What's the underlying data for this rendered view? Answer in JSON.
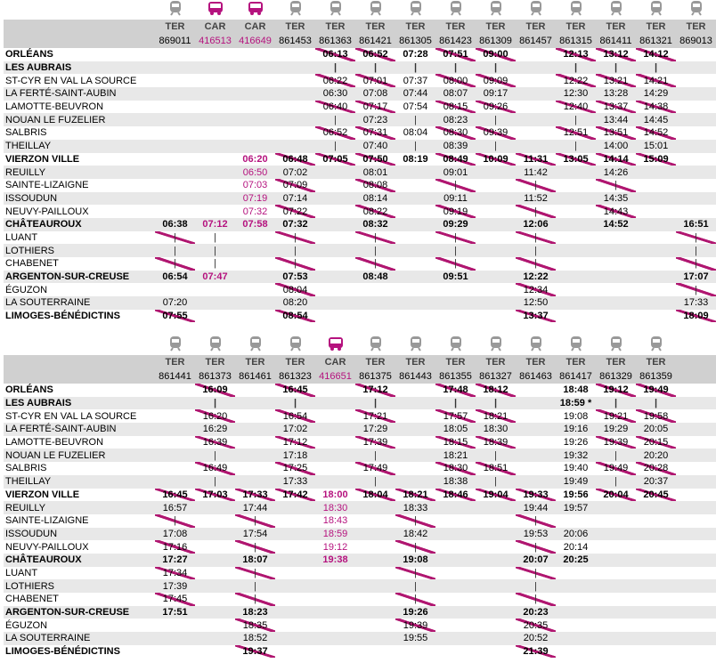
{
  "stations": [
    {
      "name": "ORLÉANS",
      "major": true
    },
    {
      "name": "LES AUBRAIS",
      "major": true
    },
    {
      "name": "ST-CYR EN VAL LA SOURCE",
      "major": false
    },
    {
      "name": "LA FERTÉ-SAINT-AUBIN",
      "major": false
    },
    {
      "name": "LAMOTTE-BEUVRON",
      "major": false
    },
    {
      "name": "NOUAN LE FUZELIER",
      "major": false
    },
    {
      "name": "SALBRIS",
      "major": false
    },
    {
      "name": "THEILLAY",
      "major": false
    },
    {
      "name": "VIERZON VILLE",
      "major": true
    },
    {
      "name": "REUILLY",
      "major": false
    },
    {
      "name": "SAINTE-LIZAIGNE",
      "major": false
    },
    {
      "name": "ISSOUDUN",
      "major": false
    },
    {
      "name": "NEUVY-PAILLOUX",
      "major": false
    },
    {
      "name": "CHÂTEAUROUX",
      "major": true
    },
    {
      "name": "LUANT",
      "major": false
    },
    {
      "name": "LOTHIERS",
      "major": false
    },
    {
      "name": "CHABENET",
      "major": false
    },
    {
      "name": "ARGENTON-SUR-CREUSE",
      "major": true
    },
    {
      "name": "ÉGUZON",
      "major": false
    },
    {
      "name": "LA SOUTERRAINE",
      "major": false
    },
    {
      "name": "LIMOGES-BÉNÉDICTINS",
      "major": true
    }
  ],
  "tables": [
    {
      "columns": [
        {
          "type": "TER",
          "number": "869011",
          "cancelled": true,
          "times": [
            null,
            null,
            null,
            null,
            null,
            null,
            null,
            null,
            null,
            null,
            null,
            null,
            null,
            "06:38",
            "|",
            "|",
            "|",
            "06:54",
            null,
            "07:20",
            "07:55"
          ]
        },
        {
          "type": "CAR",
          "number": "416513",
          "cancelled": false,
          "times": [
            null,
            null,
            null,
            null,
            null,
            null,
            null,
            null,
            null,
            null,
            null,
            null,
            null,
            "07:12",
            "|",
            "|",
            "|",
            "07:47",
            null,
            null,
            null
          ]
        },
        {
          "type": "CAR",
          "number": "416649",
          "cancelled": false,
          "times": [
            null,
            null,
            null,
            null,
            null,
            null,
            null,
            null,
            "06:20",
            "06:50",
            "07:03",
            "07:19",
            "07:32",
            "07:58",
            null,
            null,
            null,
            null,
            null,
            null,
            null
          ]
        },
        {
          "type": "TER",
          "number": "861453",
          "cancelled": true,
          "times": [
            null,
            null,
            null,
            null,
            null,
            null,
            null,
            null,
            "06:48",
            "07:02",
            "07:09",
            "07:14",
            "07:22",
            "07:32",
            "|",
            "|",
            "|",
            "07:53",
            "08:04",
            "08:20",
            "08:54"
          ]
        },
        {
          "type": "TER",
          "number": "861363",
          "cancelled": true,
          "times": [
            "06:13",
            "|",
            "06:22",
            "06:30",
            "06:40",
            "|",
            "06:52",
            "|",
            "07:05",
            null,
            null,
            null,
            null,
            null,
            null,
            null,
            null,
            null,
            null,
            null,
            null
          ]
        },
        {
          "type": "TER",
          "number": "861421",
          "cancelled": true,
          "times": [
            "06:52",
            "|",
            "07:01",
            "07:08",
            "07:17",
            "07:23",
            "07:31",
            "07:40",
            "07:50",
            "08:01",
            "08:08",
            "08:14",
            "08:22",
            "08:32",
            "|",
            "|",
            "|",
            "08:48",
            null,
            null,
            null
          ]
        },
        {
          "type": "TER",
          "number": "861305",
          "cancelled": false,
          "times": [
            "07:28",
            "|",
            "07:37",
            "07:44",
            "07:54",
            "|",
            "08:04",
            "|",
            "08:19",
            null,
            null,
            null,
            null,
            null,
            null,
            null,
            null,
            null,
            null,
            null,
            null
          ]
        },
        {
          "type": "TER",
          "number": "861423",
          "cancelled": true,
          "times": [
            "07:51",
            "|",
            "08:00",
            "08:07",
            "08:15",
            "08:23",
            "08:30",
            "08:39",
            "08:49",
            "09:01",
            "|",
            "09:11",
            "09:19",
            "09:29",
            "|",
            "|",
            "|",
            "09:51",
            null,
            null,
            null
          ]
        },
        {
          "type": "TER",
          "number": "861309",
          "cancelled": true,
          "times": [
            "09:00",
            "|",
            "09:09",
            "09:17",
            "09:26",
            "|",
            "09:39",
            "|",
            "10:09",
            null,
            null,
            null,
            null,
            null,
            null,
            null,
            null,
            null,
            null,
            null,
            null
          ]
        },
        {
          "type": "TER",
          "number": "861457",
          "cancelled": true,
          "times": [
            null,
            null,
            null,
            null,
            null,
            null,
            null,
            null,
            "11:31",
            "11:42",
            "|",
            "11:52",
            "|",
            "12:06",
            "|",
            "|",
            "|",
            "12:22",
            "12:34",
            "12:50",
            "13:37"
          ]
        },
        {
          "type": "TER",
          "number": "861315",
          "cancelled": true,
          "times": [
            "12:13",
            "|",
            "12:22",
            "12:30",
            "12:40",
            "|",
            "12:51",
            "|",
            "13:05",
            null,
            null,
            null,
            null,
            null,
            null,
            null,
            null,
            null,
            null,
            null,
            null
          ]
        },
        {
          "type": "TER",
          "number": "861411",
          "cancelled": true,
          "times": [
            "13:12",
            "|",
            "13:21",
            "13:28",
            "13:37",
            "13:44",
            "13:51",
            "14:00",
            "14:14",
            "14:26",
            "|",
            "14:35",
            "14:43",
            "14:52",
            null,
            null,
            null,
            null,
            null,
            null,
            null
          ]
        },
        {
          "type": "TER",
          "number": "861321",
          "cancelled": true,
          "times": [
            "14:12",
            "|",
            "14:21",
            "14:29",
            "14:38",
            "14:45",
            "14:52",
            "15:01",
            "15:09",
            null,
            null,
            null,
            null,
            null,
            null,
            null,
            null,
            null,
            null,
            null,
            null
          ]
        },
        {
          "type": "TER",
          "number": "869013",
          "cancelled": true,
          "times": [
            null,
            null,
            null,
            null,
            null,
            null,
            null,
            null,
            null,
            null,
            null,
            null,
            null,
            "16:51",
            "|",
            "|",
            "|",
            "17:07",
            "|",
            "17:33",
            "18:09"
          ]
        }
      ]
    },
    {
      "columns": [
        {
          "type": "TER",
          "number": "861441",
          "cancelled": true,
          "times": [
            null,
            null,
            null,
            null,
            null,
            null,
            null,
            null,
            "16:45",
            "16:57",
            "|",
            "17:08",
            "17:16",
            "17:27",
            "17:34",
            "17:39",
            "17:45",
            "17:51",
            null,
            null,
            null
          ]
        },
        {
          "type": "TER",
          "number": "861373",
          "cancelled": true,
          "times": [
            "16:09",
            "|",
            "16:20",
            "16:29",
            "16:39",
            "|",
            "16:49",
            "|",
            "17:03",
            null,
            null,
            null,
            null,
            null,
            null,
            null,
            null,
            null,
            null,
            null,
            null
          ]
        },
        {
          "type": "TER",
          "number": "861461",
          "cancelled": true,
          "times": [
            null,
            null,
            null,
            null,
            null,
            null,
            null,
            null,
            "17:33",
            "17:44",
            "|",
            "17:54",
            "|",
            "18:07",
            "|",
            "|",
            "|",
            "18:23",
            "18:35",
            "18:52",
            "19:37"
          ]
        },
        {
          "type": "TER",
          "number": "861323",
          "cancelled": true,
          "times": [
            "16:45",
            "|",
            "16:54",
            "17:02",
            "17:12",
            "17:18",
            "17:25",
            "17:33",
            "17:42",
            null,
            null,
            null,
            null,
            null,
            null,
            null,
            null,
            null,
            null,
            null,
            null
          ]
        },
        {
          "type": "CAR",
          "number": "416651",
          "cancelled": false,
          "times": [
            null,
            null,
            null,
            null,
            null,
            null,
            null,
            null,
            "18:00",
            "18:30",
            "18:43",
            "18:59",
            "19:12",
            "19:38",
            null,
            null,
            null,
            null,
            null,
            null,
            null
          ]
        },
        {
          "type": "TER",
          "number": "861375",
          "cancelled": true,
          "times": [
            "17:12",
            "|",
            "17:21",
            "17:29",
            "17:39",
            "|",
            "17:49",
            "|",
            "18:04",
            null,
            null,
            null,
            null,
            null,
            null,
            null,
            null,
            null,
            null,
            null,
            null
          ]
        },
        {
          "type": "TER",
          "number": "861443",
          "cancelled": true,
          "times": [
            null,
            null,
            null,
            null,
            null,
            null,
            null,
            null,
            "18:21",
            "18:33",
            "|",
            "18:42",
            "|",
            "19:08",
            "|",
            "|",
            "|",
            "19:26",
            "19:39",
            "19:55",
            null
          ]
        },
        {
          "type": "TER",
          "number": "861355",
          "cancelled": true,
          "times": [
            "17:48",
            "|",
            "17:57",
            "18:05",
            "18:15",
            "18:21",
            "18:30",
            "18:38",
            "18:46",
            null,
            null,
            null,
            null,
            null,
            null,
            null,
            null,
            null,
            null,
            null,
            null
          ]
        },
        {
          "type": "TER",
          "number": "861327",
          "cancelled": true,
          "times": [
            "18:12",
            "|",
            "18:21",
            "18:30",
            "18:39",
            "|",
            "18:51",
            "|",
            "19:04",
            null,
            null,
            null,
            null,
            null,
            null,
            null,
            null,
            null,
            null,
            null,
            null
          ]
        },
        {
          "type": "TER",
          "number": "861463",
          "cancelled": true,
          "times": [
            null,
            null,
            null,
            null,
            null,
            null,
            null,
            null,
            "19:33",
            "19:44",
            "|",
            "19:53",
            "|",
            "20:07",
            "|",
            "|",
            "|",
            "20:23",
            "20:35",
            "20:52",
            "21:39"
          ]
        },
        {
          "type": "TER",
          "number": "861417",
          "cancelled": false,
          "times": [
            "18:48",
            "18:59 *",
            "19:08",
            "19:16",
            "19:26",
            "19:32",
            "19:40",
            "19:49",
            "19:56",
            "19:57",
            null,
            "20:06",
            "20:14",
            "20:25",
            null,
            null,
            null,
            null,
            null,
            null,
            null
          ]
        },
        {
          "type": "TER",
          "number": "861329",
          "cancelled": true,
          "times": [
            "19:12",
            "|",
            "19:21",
            "19:29",
            "19:39",
            "|",
            "19:49",
            "|",
            "20:04",
            null,
            null,
            null,
            null,
            null,
            null,
            null,
            null,
            null,
            null,
            null,
            null
          ]
        },
        {
          "type": "TER",
          "number": "861359",
          "cancelled": true,
          "times": [
            "19:49",
            "|",
            "19:58",
            "20:05",
            "20:15",
            "20:20",
            "20:28",
            "20:37",
            "20:45",
            null,
            null,
            null,
            null,
            null,
            null,
            null,
            null,
            null,
            null,
            null,
            null
          ]
        }
      ]
    }
  ]
}
